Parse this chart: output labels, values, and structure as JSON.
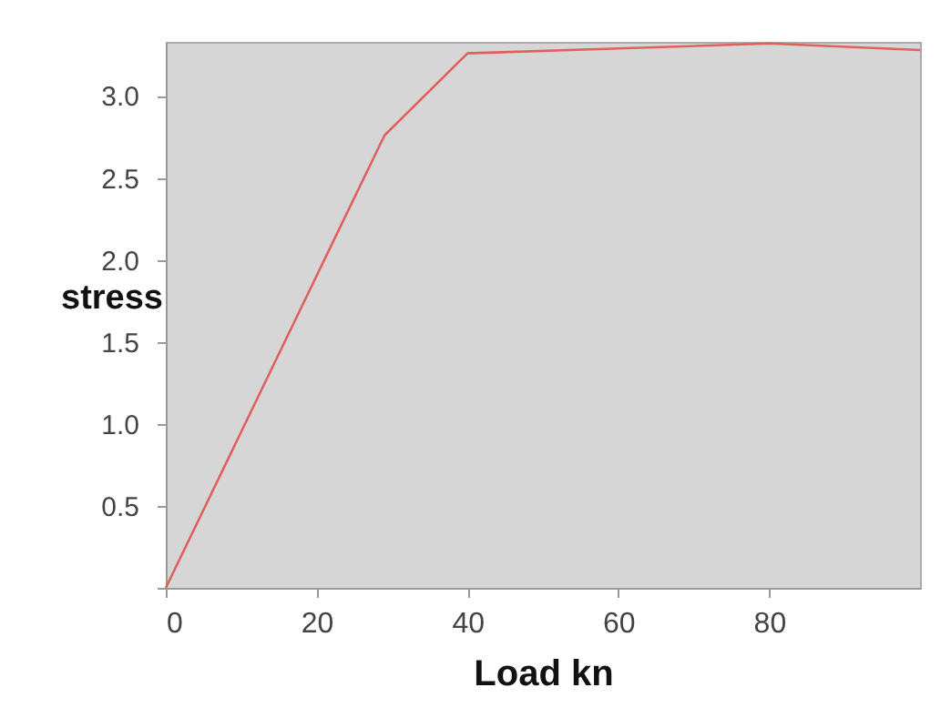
{
  "chart_data": {
    "type": "line",
    "xlabel": "Load kn",
    "ylabel": "stress",
    "x": [
      0,
      29,
      40,
      60,
      80,
      100
    ],
    "series": [
      {
        "color": "#e06060",
        "values": [
          0,
          2.76,
          3.26,
          3.29,
          3.32,
          3.28
        ]
      }
    ],
    "xlim": [
      0,
      100
    ],
    "ylim": [
      0,
      3.33
    ],
    "xticks": [
      0,
      20,
      40,
      60,
      80
    ],
    "yticks": [
      {
        "value": 0,
        "label": null
      },
      0.5,
      {
        "value": 1,
        "label": "1.0"
      },
      1.5,
      {
        "value": 2,
        "label": "2.0"
      },
      2.5,
      {
        "value": 3,
        "label": "3.0"
      }
    ],
    "grid": false,
    "marker": "none",
    "line_style": "solid"
  }
}
